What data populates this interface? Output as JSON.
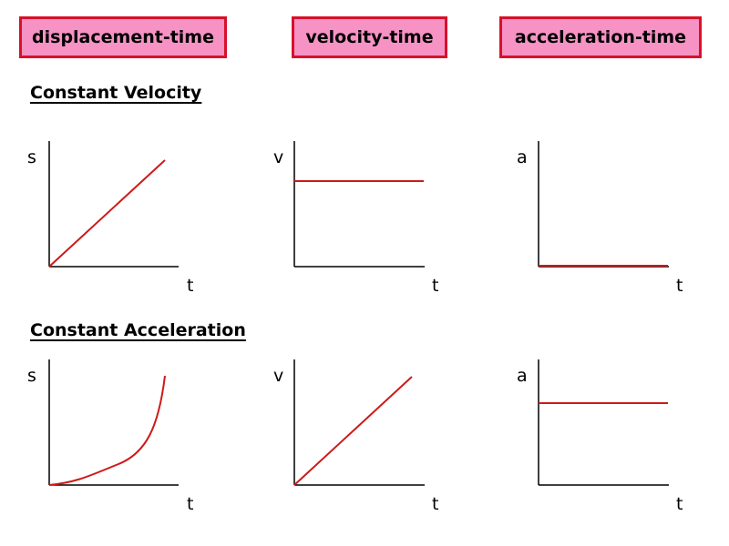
{
  "colors": {
    "header_fill": "#f693c4",
    "header_border": "#d8102a",
    "curve": "#cc1a1a",
    "axis": "#000000"
  },
  "column_headers": [
    "displacement-time",
    "velocity-time",
    "acceleration-time"
  ],
  "rows": [
    {
      "title": "Constant Velocity",
      "graphs": [
        {
          "y_label": "s",
          "x_label": "t",
          "shape": "rising straight line from origin"
        },
        {
          "y_label": "v",
          "x_label": "t",
          "shape": "horizontal line above axis"
        },
        {
          "y_label": "a",
          "x_label": "t",
          "shape": "line along time axis (zero)"
        }
      ]
    },
    {
      "title": "Constant Acceleration",
      "graphs": [
        {
          "y_label": "s",
          "x_label": "t",
          "shape": "upward curving parabola"
        },
        {
          "y_label": "v",
          "x_label": "t",
          "shape": "rising straight line from origin"
        },
        {
          "y_label": "a",
          "x_label": "t",
          "shape": "horizontal line above axis"
        }
      ]
    }
  ]
}
